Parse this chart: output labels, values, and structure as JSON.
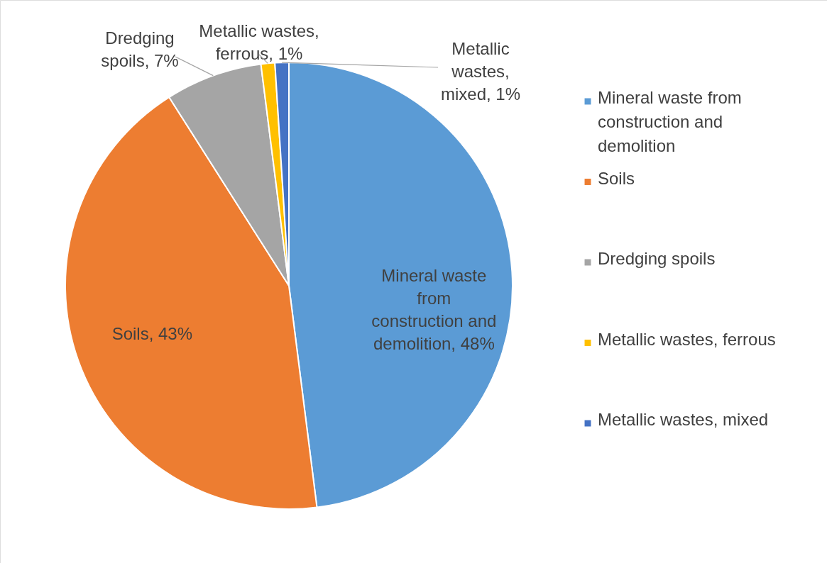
{
  "chart_data": {
    "type": "pie",
    "categories": [
      "Mineral waste from construction and demolition",
      "Soils",
      "Dredging spoils",
      "Metallic wastes, ferrous",
      "Metallic wastes, mixed"
    ],
    "values": [
      48,
      43,
      7,
      1,
      1
    ],
    "colors": [
      "#5b9bd5",
      "#ed7d31",
      "#a5a5a5",
      "#ffc000",
      "#4472c4"
    ],
    "value_labels": [
      "Mineral waste from construction and demolition, 48%",
      "Soils, 43%",
      "Dredging spoils, 7%",
      "Metallic wastes, ferrous, 1%",
      "Metallic wastes, mixed, 1%"
    ],
    "legend": "right"
  }
}
